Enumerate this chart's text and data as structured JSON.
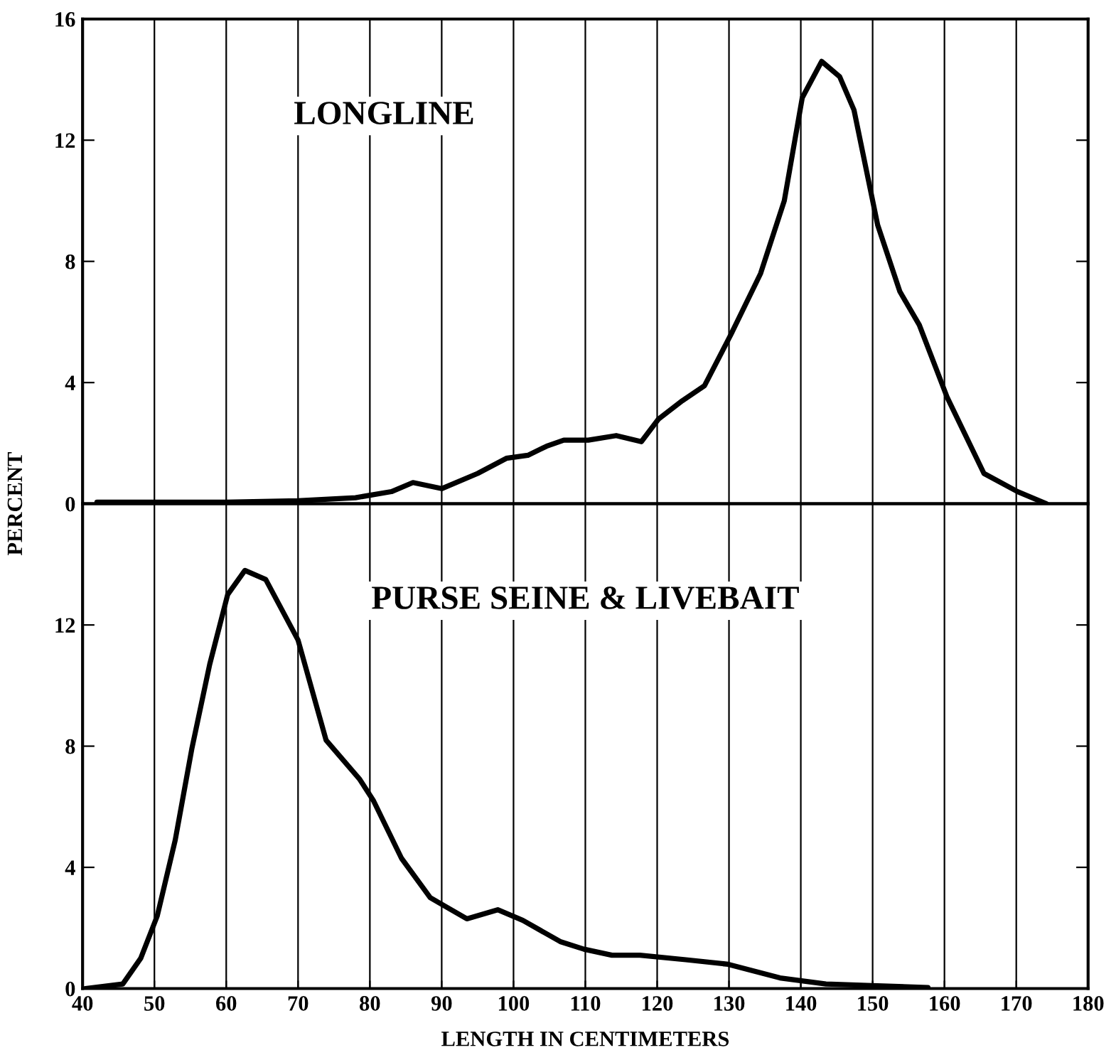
{
  "chart_data": [
    {
      "type": "line",
      "title": "LONGLINE",
      "ylabel": "PERCENT",
      "xlim": [
        40,
        180
      ],
      "xticks": [
        40,
        50,
        60,
        70,
        80,
        90,
        100,
        110,
        120,
        130,
        140,
        150,
        160,
        170,
        180
      ],
      "ylim": [
        0,
        16
      ],
      "yticks": [
        0,
        4,
        8,
        12,
        16
      ],
      "grid": "x",
      "tick_labels": "y",
      "legend": false,
      "marker": "none",
      "line_style": "solid",
      "series": [
        {
          "color": "#000000",
          "x": [
            42,
            50,
            60,
            70,
            78,
            83,
            86,
            90,
            95,
            99,
            102,
            104.6,
            107,
            110.4,
            114.3,
            117.8,
            120.2,
            123.5,
            126.6,
            130.3,
            134.4,
            137.7,
            140.2,
            142.9,
            145.4,
            147.4,
            150.7,
            153.8,
            156.5,
            160.4,
            165.5,
            170.2,
            174.2
          ],
          "values": [
            0.05,
            0.05,
            0.05,
            0.1,
            0.2,
            0.4,
            0.7,
            0.5,
            1.0,
            1.5,
            1.6,
            1.9,
            2.1,
            2.1,
            2.25,
            2.05,
            2.8,
            3.4,
            3.9,
            5.6,
            7.6,
            10.0,
            13.4,
            14.6,
            14.1,
            13.0,
            9.2,
            7.0,
            5.9,
            3.5,
            1.0,
            0.4,
            0
          ]
        }
      ]
    },
    {
      "type": "line",
      "title": "PURSE SEINE & LIVEBAIT",
      "xlabel": "LENGTH IN CENTIMETERS",
      "xlim": [
        40,
        180
      ],
      "xticks": [
        40,
        50,
        60,
        70,
        80,
        90,
        100,
        110,
        120,
        130,
        140,
        150,
        160,
        170,
        180
      ],
      "ylim": [
        0,
        16
      ],
      "yticks": [
        0,
        4,
        8,
        12
      ],
      "grid": "x",
      "legend": false,
      "marker": "none",
      "line_style": "solid",
      "series": [
        {
          "color": "#000000",
          "x": [
            40.4,
            45.6,
            48.1,
            50.4,
            52.9,
            55.2,
            57.7,
            60.2,
            62.6,
            65.5,
            70.0,
            73.9,
            78.6,
            80.5,
            84.4,
            88.4,
            93.5,
            97.8,
            101.3,
            106.5,
            109.8,
            113.7,
            117.6,
            124.0,
            129.9,
            137.1,
            143.5,
            149.9,
            157.7
          ],
          "values": [
            0,
            0.15,
            1.0,
            2.4,
            4.9,
            7.9,
            10.7,
            13.0,
            13.8,
            13.5,
            11.5,
            8.2,
            6.9,
            6.2,
            4.3,
            3.0,
            2.3,
            2.6,
            2.25,
            1.55,
            1.3,
            1.1,
            1.1,
            0.95,
            0.8,
            0.35,
            0.15,
            0.1,
            0.03
          ]
        }
      ]
    }
  ]
}
